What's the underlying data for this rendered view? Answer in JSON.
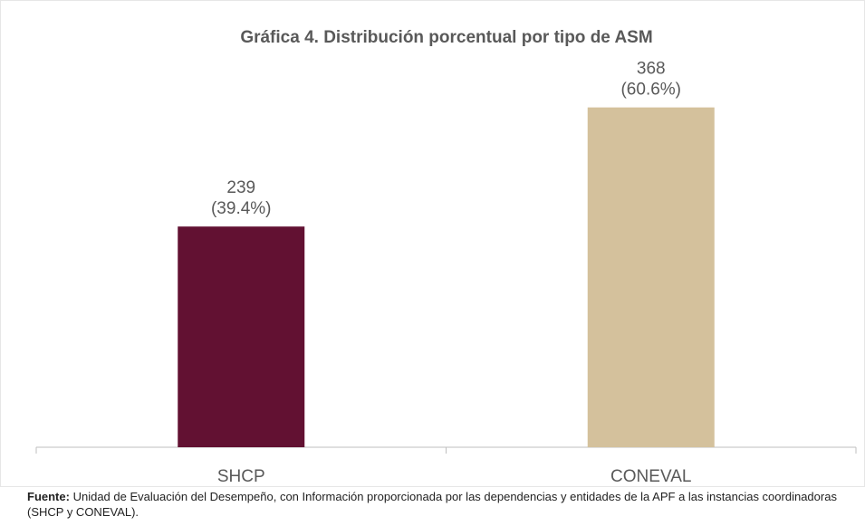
{
  "chart_data": {
    "type": "bar",
    "title": "Gráfica 4. Distribución porcentual por tipo de ASM",
    "categories": [
      "SHCP",
      "CONEVAL"
    ],
    "values": [
      239,
      368
    ],
    "percentages": [
      39.4,
      60.6
    ],
    "percentage_labels": [
      "(39.4%)",
      "(60.6%)"
    ],
    "colors": [
      "#621132",
      "#d4c19c"
    ],
    "ylim": [
      0,
      400
    ],
    "source_label": "Fuente:",
    "source": "Unidad de Evaluación del Desempeño, con Información proporcionada por las dependencias y entidades de la APF a las instancias coordinadoras (SHCP y CONEVAL)."
  }
}
